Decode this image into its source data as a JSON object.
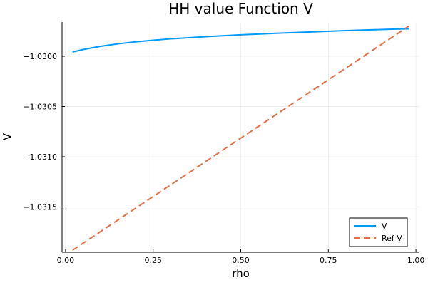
{
  "chart_data": {
    "type": "line",
    "title": "HH value Function V",
    "xlabel": "rho",
    "ylabel": "V",
    "xlim": [
      -0.01,
      1.01
    ],
    "ylim": [
      -1.03195,
      -1.02966
    ],
    "xticks": [
      0.0,
      0.25,
      0.5,
      0.75,
      1.0
    ],
    "xtick_labels": [
      "0.00",
      "0.25",
      "0.50",
      "0.75",
      "1.00"
    ],
    "yticks": [
      -1.03,
      -1.0305,
      -1.031,
      -1.0315
    ],
    "ytick_labels": [
      "−1.0300",
      "−1.0305",
      "−1.0310",
      "−1.0315"
    ],
    "grid": true,
    "legend_position": "bottom-right",
    "series": [
      {
        "name": "V",
        "color": "#009AFA",
        "style": "solid",
        "x": [
          0.02,
          0.05,
          0.1,
          0.15,
          0.2,
          0.25,
          0.3,
          0.4,
          0.5,
          0.6,
          0.7,
          0.8,
          0.9,
          0.95,
          0.98
        ],
        "y": [
          -1.029958,
          -1.029933,
          -1.029901,
          -1.029876,
          -1.029857,
          -1.029841,
          -1.029827,
          -1.029805,
          -1.029787,
          -1.029772,
          -1.029758,
          -1.029745,
          -1.029734,
          -1.029729,
          -1.029727
        ]
      },
      {
        "name": "Ref V",
        "color": "#E26F46",
        "style": "dashed",
        "x": [
          0.02,
          0.98
        ],
        "y": [
          -1.03193,
          -1.0297
        ]
      }
    ]
  }
}
